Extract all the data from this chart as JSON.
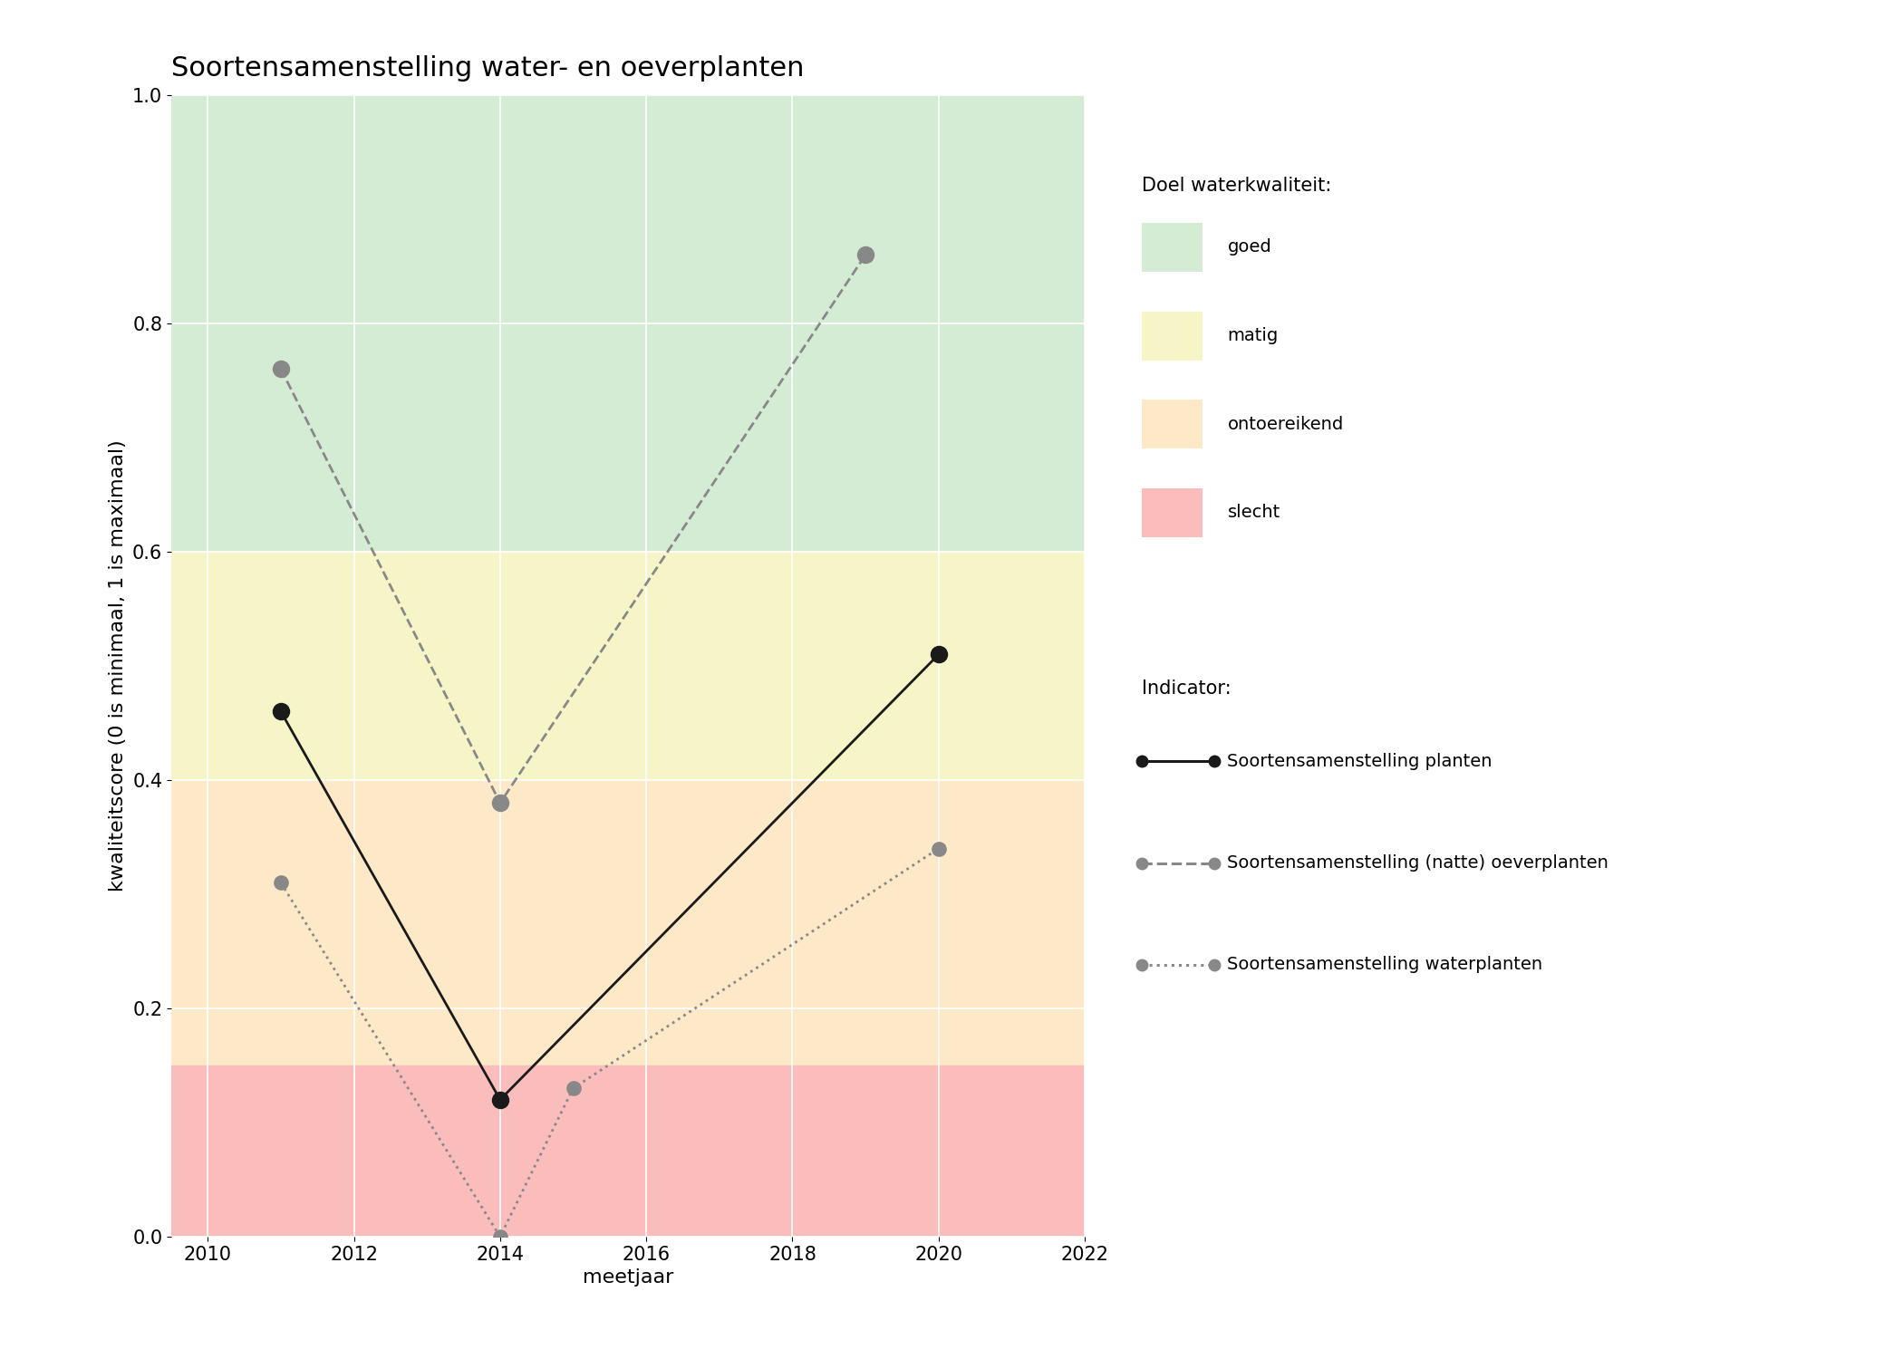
{
  "title": "Soortensamenstelling water- en oeverplanten",
  "xlabel": "meetjaar",
  "ylabel": "kwaliteitscore (0 is minimaal, 1 is maximaal)",
  "xlim": [
    2009.5,
    2022
  ],
  "ylim": [
    0.0,
    1.0
  ],
  "xticks": [
    2010,
    2012,
    2014,
    2016,
    2018,
    2020,
    2022
  ],
  "yticks": [
    0.0,
    0.2,
    0.4,
    0.6,
    0.8,
    1.0
  ],
  "background_color": "#ffffff",
  "zones": [
    {
      "label": "goed",
      "ymin": 0.6,
      "ymax": 1.0,
      "color": "#d5ecd4"
    },
    {
      "label": "matig",
      "ymin": 0.4,
      "ymax": 0.6,
      "color": "#f5f5c8"
    },
    {
      "label": "ontoereikend",
      "ymin": 0.15,
      "ymax": 0.4,
      "color": "#fde8c8"
    },
    {
      "label": "slecht",
      "ymin": 0.0,
      "ymax": 0.15,
      "color": "#fbbcbc"
    }
  ],
  "series": [
    {
      "label": "Soortensamenstelling planten",
      "x": [
        2011,
        2014,
        2020
      ],
      "y": [
        0.46,
        0.12,
        0.51
      ],
      "color": "#1a1a1a",
      "linestyle": "solid",
      "linewidth": 2.0,
      "markersize": 13,
      "marker": "o",
      "markerfacecolor": "#1a1a1a",
      "markeredgecolor": "#1a1a1a",
      "zorder": 5
    },
    {
      "label": "Soortensamenstelling (natte) oeverplanten",
      "x": [
        2011,
        2014,
        2019
      ],
      "y": [
        0.76,
        0.38,
        0.86
      ],
      "color": "#888888",
      "linestyle": "dashed",
      "linewidth": 2.0,
      "markersize": 13,
      "marker": "o",
      "markerfacecolor": "#888888",
      "markeredgecolor": "#888888",
      "zorder": 5
    },
    {
      "label": "Soortensamenstelling waterplanten",
      "x": [
        2011,
        2014,
        2015,
        2020
      ],
      "y": [
        0.31,
        0.0,
        0.13,
        0.34
      ],
      "color": "#888888",
      "linestyle": "dotted",
      "linewidth": 2.0,
      "markersize": 11,
      "marker": "o",
      "markerfacecolor": "#888888",
      "markeredgecolor": "#888888",
      "zorder": 5
    }
  ],
  "legend_title_quality": "Doel waterkwaliteit:",
  "legend_title_indicator": "Indicator:",
  "zone_legend_colors": [
    "#d5ecd4",
    "#f5f5c8",
    "#fde8c8",
    "#fbbcbc"
  ],
  "zone_legend_labels": [
    "goed",
    "matig",
    "ontoereikend",
    "slecht"
  ],
  "title_fontsize": 22,
  "label_fontsize": 16,
  "tick_fontsize": 15,
  "legend_fontsize": 14
}
